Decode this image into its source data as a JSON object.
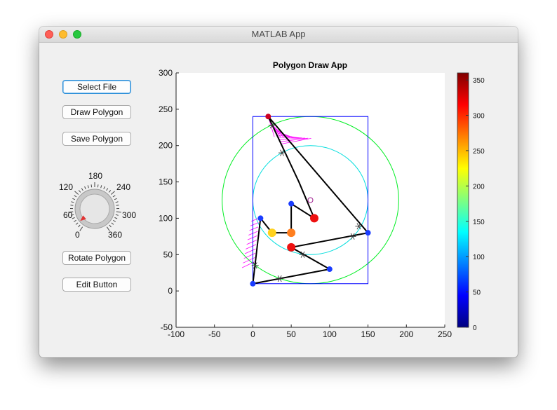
{
  "window": {
    "title": "MATLAB App"
  },
  "buttons": {
    "select_file": "Select File",
    "draw_polygon": "Draw Polygon",
    "save_polygon": "Save Polygon",
    "rotate_polygon": "Rotate Polygon",
    "edit_button": "Edit Button"
  },
  "knob": {
    "tick_labels": [
      "0",
      "60",
      "120",
      "180",
      "240",
      "300",
      "360"
    ],
    "value": 20
  },
  "chart_data": {
    "type": "scatter",
    "title": "Polygon Draw App",
    "xlabel": "",
    "ylabel": "",
    "xlim": [
      -100,
      250
    ],
    "ylim": [
      -50,
      300
    ],
    "x_ticks": [
      "-100",
      "-50",
      "0",
      "50",
      "100",
      "150",
      "200",
      "250"
    ],
    "y_ticks": [
      "-50",
      "0",
      "50",
      "100",
      "150",
      "200",
      "250",
      "300"
    ],
    "grid": false,
    "colorbar": {
      "colormap": "jet",
      "range": [
        0,
        360
      ],
      "tick_labels": [
        "0",
        "50",
        "100",
        "150",
        "200",
        "250",
        "300",
        "350"
      ]
    },
    "polygon": {
      "color": "#000000",
      "vertices": [
        [
          0,
          10
        ],
        [
          100,
          30
        ],
        [
          50,
          60
        ],
        [
          150,
          80
        ],
        [
          20,
          240
        ],
        [
          60,
          150
        ],
        [
          80,
          100
        ],
        [
          50,
          120
        ],
        [
          50,
          80
        ],
        [
          25,
          80
        ],
        [
          10,
          100
        ],
        [
          0,
          10
        ]
      ]
    },
    "vertex_markers": [
      {
        "x": 0,
        "y": 10,
        "color": "#1a3cff"
      },
      {
        "x": 100,
        "y": 30,
        "color": "#1a3cff"
      },
      {
        "x": 50,
        "y": 60,
        "color": "#ee1111"
      },
      {
        "x": 150,
        "y": 80,
        "color": "#1a3cff"
      },
      {
        "x": 20,
        "y": 240,
        "color": "#cc0022"
      },
      {
        "x": 80,
        "y": 100,
        "color": "#ee1111"
      },
      {
        "x": 50,
        "y": 120,
        "color": "#1a3cff"
      },
      {
        "x": 50,
        "y": 80,
        "color": "#ff7f1f"
      },
      {
        "x": 25,
        "y": 80,
        "color": "#ffd21f"
      },
      {
        "x": 10,
        "y": 100,
        "color": "#1a3cff"
      }
    ],
    "midpoint_markers": [
      [
        35,
        17
      ],
      [
        65,
        50
      ],
      [
        130,
        75
      ],
      [
        138,
        89
      ],
      [
        25,
        228
      ],
      [
        38,
        190
      ],
      [
        3,
        35
      ]
    ],
    "open_marker": {
      "x": 75,
      "y": 125,
      "color": "#a02090"
    },
    "bounding_box": {
      "x": [
        0,
        150
      ],
      "y": [
        10,
        240
      ],
      "color": "#0000ff"
    },
    "outer_circle": {
      "cx": 75,
      "cy": 125,
      "r": 115,
      "color": "#00ee22"
    },
    "inner_circle": {
      "cx": 75,
      "cy": 125,
      "r": 75,
      "color": "#00dddd"
    },
    "magenta_color": "#ff00ff"
  }
}
